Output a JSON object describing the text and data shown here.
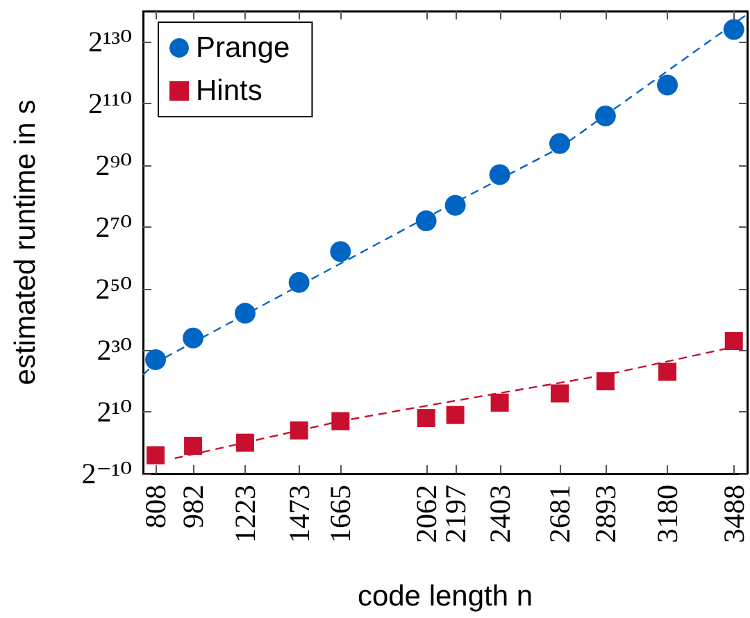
{
  "chart_data": {
    "type": "scatter",
    "xlabel": "code length n",
    "ylabel": "estimated runtime in s",
    "log": "y",
    "grid": false,
    "legend": "top left",
    "xlim": [
      750,
      3550
    ],
    "xticks": [
      808,
      982,
      1223,
      1473,
      1665,
      2062,
      2197,
      2403,
      2681,
      2893,
      3180,
      3488
    ],
    "ylim": [
      0.0009765625,
      1.3937965749081643e+42
    ],
    "yticks": [
      {
        "value": 0.0009765625,
        "label": "2⁻¹⁰"
      },
      {
        "value": 1024,
        "label": "2¹⁰"
      },
      {
        "value": 1073741824,
        "label": "2³⁰"
      },
      {
        "value": 1125899906842624,
        "label": "2⁵⁰"
      },
      {
        "value": 1.1805916207174113e+21,
        "label": "2⁷⁰"
      },
      {
        "value": 1.2379400392853803e+27,
        "label": "2⁹⁰"
      },
      {
        "value": 1.298074214633707e+33,
        "label": "2¹¹⁰"
      },
      {
        "value": 1.361129467683754e+39,
        "label": "2¹³⁰"
      }
    ],
    "x": [
      808,
      982,
      1223,
      1473,
      1665,
      2062,
      2197,
      2403,
      2681,
      2893,
      3180,
      3488
    ],
    "series": [
      {
        "name": "Prange",
        "color": "#0066c4",
        "marker": "circle",
        "values": [
          130000000.0,
          17000000000.0,
          4400000000000.0,
          4500000000000000.0,
          4.6e+18,
          4.7e+21,
          1.5e+23,
          1.5e+26,
          1.6e+29,
          8.1e+31,
          8.3e+34,
          2.2e+40
        ]
      },
      {
        "name": "Hints",
        "color": "#c8102e",
        "marker": "square",
        "values": [
          0.06,
          0.5,
          1,
          16,
          128,
          256,
          512,
          8200,
          66000,
          1000000.0,
          8400000.0,
          8600000000.0
        ]
      },
      {
        "type": "line",
        "color": "#0066c4",
        "marker": "none",
        "line_style": "dashed",
        "x": [
          750,
          808,
          2062,
          2681,
          3550
        ],
        "values": [
          4200000.0,
          67000000.0,
          9.4e+21,
          6.3e+28,
          7e+41
        ]
      },
      {
        "type": "line",
        "color": "#c8102e",
        "marker": "none",
        "line_style": "dashed",
        "x": [
          897,
          1665,
          2062,
          2893,
          3550
        ],
        "values": [
          0.03,
          128,
          4100,
          4200000.0,
          4300000000.0
        ]
      }
    ]
  }
}
